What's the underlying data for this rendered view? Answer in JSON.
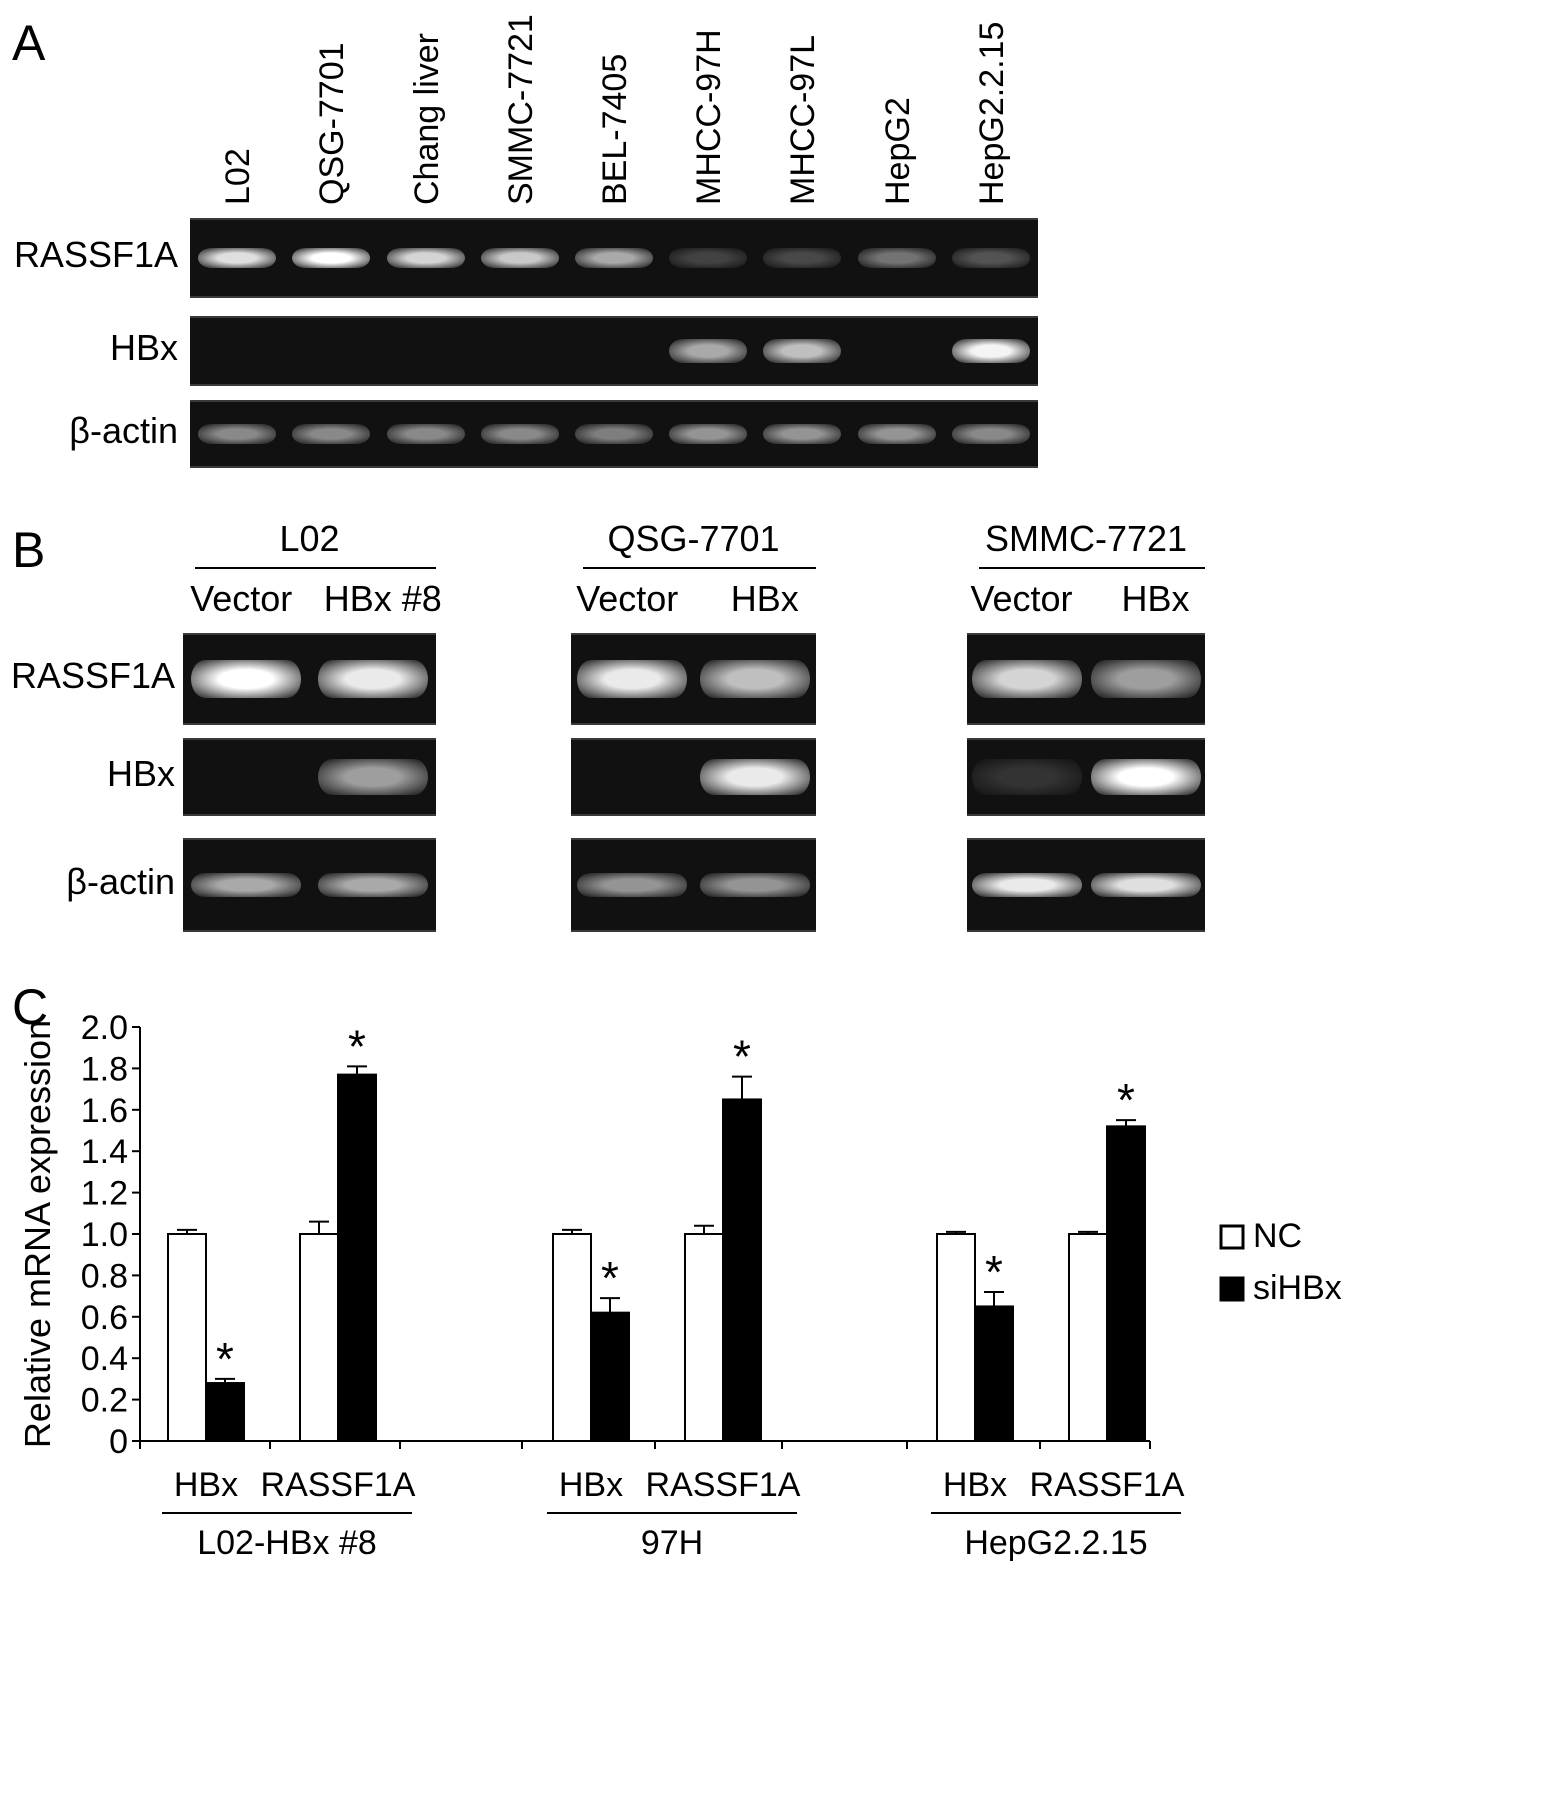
{
  "panels": {
    "A": {
      "letter": "A",
      "lanes": [
        "L02",
        "QSG-7701",
        "Chang liver",
        "SMMC-7721",
        "BEL-7405",
        "MHCC-97H",
        "MHCC-97L",
        "HepG2",
        "HepG2.2.15"
      ],
      "rows": [
        {
          "label": "RASSF1A",
          "intensities": [
            0.85,
            1.0,
            0.8,
            0.75,
            0.6,
            0.12,
            0.15,
            0.35,
            0.2
          ]
        },
        {
          "label": "HBx",
          "intensities": [
            0,
            0,
            0,
            0,
            0,
            0.6,
            0.7,
            0,
            0.95
          ]
        },
        {
          "label": "β-actin",
          "intensities": [
            0.45,
            0.45,
            0.45,
            0.45,
            0.4,
            0.5,
            0.5,
            0.5,
            0.45
          ]
        }
      ]
    },
    "B": {
      "letter": "B",
      "row_labels": [
        "RASSF1A",
        "HBx",
        "β-actin"
      ],
      "groups": [
        {
          "title": "L02",
          "conditions": [
            "Vector",
            "HBx #8"
          ],
          "intensities": [
            [
              1.0,
              0.9
            ],
            [
              0,
              0.55
            ],
            [
              0.6,
              0.6
            ]
          ]
        },
        {
          "title": "QSG-7701",
          "conditions": [
            "Vector",
            "HBx"
          ],
          "intensities": [
            [
              0.9,
              0.7
            ],
            [
              0,
              0.9
            ],
            [
              0.5,
              0.5
            ]
          ]
        },
        {
          "title": "SMMC-7721",
          "conditions": [
            "Vector",
            "HBx"
          ],
          "intensities": [
            [
              0.8,
              0.55
            ],
            [
              0.05,
              1.0
            ],
            [
              0.9,
              0.85
            ]
          ]
        }
      ]
    },
    "C": {
      "letter": "C",
      "legend": [
        {
          "label": "NC",
          "color": "#ffffff"
        },
        {
          "label": "siHBx",
          "color": "#000000"
        }
      ]
    }
  },
  "chart_data": {
    "type": "bar",
    "ylabel": "Relative mRNA expression",
    "ylim": [
      0,
      2.0
    ],
    "yticks": [
      "0",
      "0.2",
      "0.4",
      "0.6",
      "0.8",
      "1.0",
      "1.2",
      "1.4",
      "1.6",
      "1.8",
      "2.0"
    ],
    "groups": [
      {
        "name": "L02-HBx #8",
        "categories": [
          "HBx",
          "RASSF1A"
        ]
      },
      {
        "name": "97H",
        "categories": [
          "HBx",
          "RASSF1A"
        ]
      },
      {
        "name": "HepG2.2.15",
        "categories": [
          "HBx",
          "RASSF1A"
        ]
      }
    ],
    "series": [
      {
        "name": "NC",
        "values": [
          1.0,
          1.0,
          1.0,
          1.0,
          1.0,
          1.0
        ],
        "errors": [
          0.02,
          0.06,
          0.02,
          0.04,
          0.01,
          0.01
        ],
        "significant": [
          false,
          false,
          false,
          false,
          false,
          false
        ]
      },
      {
        "name": "siHBx",
        "values": [
          0.28,
          1.77,
          0.62,
          1.65,
          0.65,
          1.52
        ],
        "errors": [
          0.02,
          0.04,
          0.07,
          0.11,
          0.07,
          0.03
        ],
        "significant": [
          true,
          true,
          true,
          true,
          true,
          true
        ]
      }
    ],
    "significance_mark": "*"
  }
}
